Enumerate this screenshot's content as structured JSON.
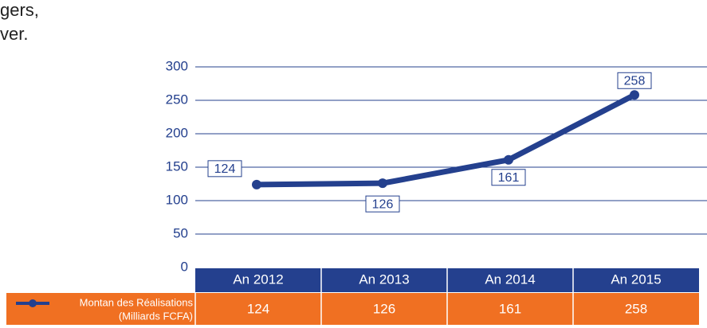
{
  "intro_text": [
    "gers,",
    "ver."
  ],
  "chart_data": {
    "type": "line",
    "categories": [
      "An 2012",
      "An 2013",
      "An 2014",
      "An 2015"
    ],
    "series": [
      {
        "name": "Montan des Réalisations",
        "unit": "(Milliards FCFA)",
        "color": "#24408e",
        "values": [
          124,
          126,
          161,
          258
        ]
      }
    ],
    "ylim": [
      0,
      300
    ],
    "yticks": [
      0,
      50,
      100,
      150,
      200,
      250,
      300
    ],
    "grid": true,
    "table_header_color": "#24408e",
    "table_row_color": "#f07022"
  }
}
